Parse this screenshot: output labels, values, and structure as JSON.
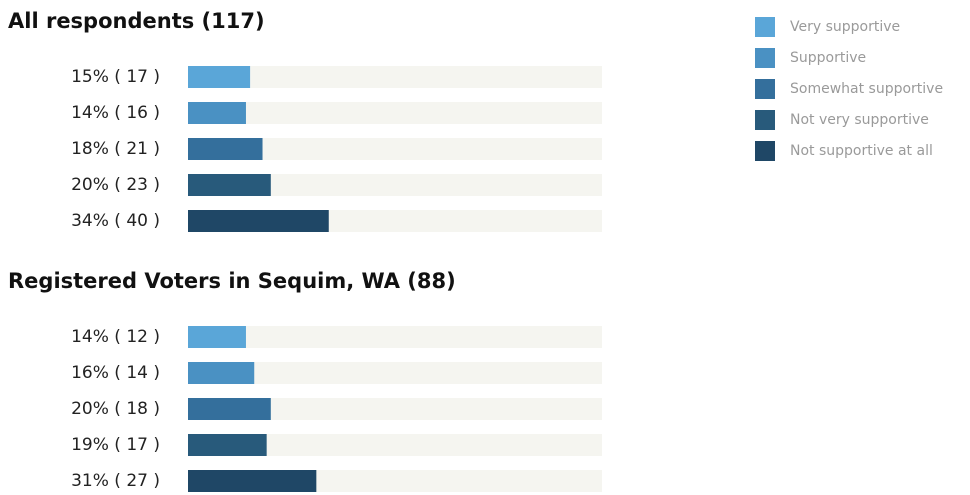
{
  "legend": {
    "items": [
      {
        "name": "Very supportive",
        "color": "#5aa6d8"
      },
      {
        "name": "Supportive",
        "color": "#4a91c3"
      },
      {
        "name": "Somewhat supportive",
        "color": "#346f9c"
      },
      {
        "name": "Not very supportive",
        "color": "#285a7b"
      },
      {
        "name": "Not supportive at all",
        "color": "#1f4766"
      }
    ]
  },
  "chart_data": [
    {
      "type": "bar",
      "title": "All respondents (117)",
      "values": [
        15,
        14,
        18,
        20,
        34
      ],
      "value_labels": [
        "15% ( 17 )",
        "14% ( 16 )",
        "18% ( 21 )",
        "20% ( 23 )",
        "34% ( 40 )"
      ],
      "xlim": [
        0,
        100
      ]
    },
    {
      "type": "bar",
      "title": "Registered Voters in Sequim, WA (88)",
      "values": [
        14,
        16,
        20,
        19,
        31
      ],
      "value_labels": [
        "14% ( 12 )",
        "16% ( 14 )",
        "20% ( 18 )",
        "19% ( 17 )",
        "31% ( 27 )"
      ],
      "xlim": [
        0,
        100
      ]
    }
  ]
}
